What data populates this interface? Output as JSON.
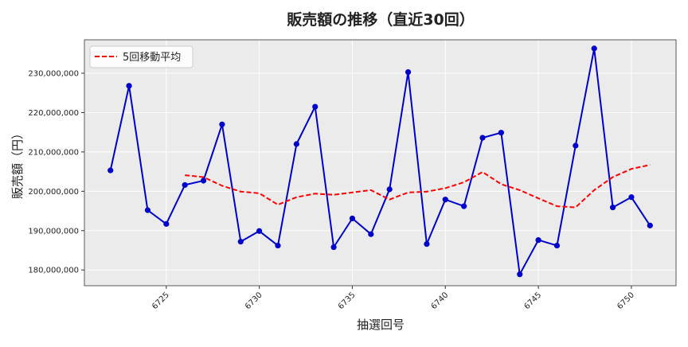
{
  "chart_data": {
    "type": "line",
    "title": "販売額の推移（直近30回）",
    "xlabel": "抽選回号",
    "ylabel": "販売額（円）",
    "xlim": [
      6720.6,
      6752.4
    ],
    "ylim": [
      176000000,
      238500000
    ],
    "xticks": [
      6725,
      6730,
      6735,
      6740,
      6745,
      6750
    ],
    "yticks": [
      180000000,
      190000000,
      200000000,
      210000000,
      220000000,
      230000000
    ],
    "grid": true,
    "legend_position": "top-left",
    "x": [
      6722,
      6723,
      6724,
      6725,
      6726,
      6727,
      6728,
      6729,
      6730,
      6731,
      6732,
      6733,
      6734,
      6735,
      6736,
      6737,
      6738,
      6739,
      6740,
      6741,
      6742,
      6743,
      6744,
      6745,
      6746,
      6747,
      6748,
      6749,
      6750,
      6751
    ],
    "series": [
      {
        "name": "",
        "color": "#0000cc",
        "style": "solid-markers",
        "values": [
          205300000,
          226800000,
          195200000,
          191700000,
          201600000,
          202700000,
          217000000,
          187200000,
          189900000,
          186200000,
          212000000,
          221500000,
          185800000,
          193100000,
          189100000,
          200500000,
          230300000,
          186600000,
          197900000,
          196200000,
          213600000,
          214900000,
          178900000,
          187600000,
          186200000,
          211600000,
          236300000,
          195900000,
          198500000,
          191300000
        ]
      },
      {
        "name": "5回移動平均",
        "color": "#ff0000",
        "style": "dashed",
        "values": [
          null,
          null,
          null,
          null,
          204100000,
          203600000,
          201400000,
          199900000,
          199500000,
          196600000,
          198500000,
          199400000,
          199100000,
          199700000,
          200300000,
          197900000,
          199700000,
          199900000,
          200800000,
          202300000,
          204900000,
          201800000,
          200300000,
          198200000,
          196200000,
          195900000,
          200300000,
          203600000,
          205700000,
          206700000
        ]
      }
    ]
  }
}
